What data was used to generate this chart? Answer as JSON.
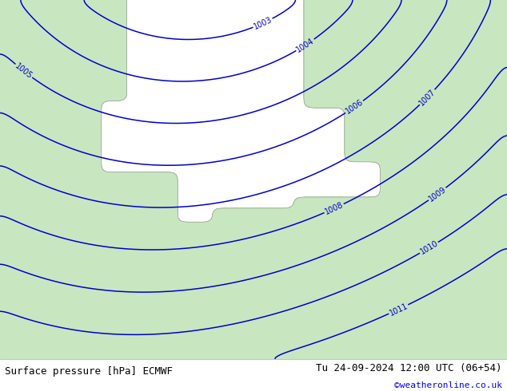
{
  "title_left": "Surface pressure [hPa] ECMWF",
  "title_right": "Tu 24-09-2024 12:00 UTC (06+54)",
  "credit": "©weatheronline.co.uk",
  "bg_color": "#ffffff",
  "land_color": "#c8e6c0",
  "sea_color": "#cccccc",
  "contour_color": "#0000cc",
  "label_color": "#0000cc",
  "text_color": "#000000",
  "credit_color": "#0000ff",
  "figsize": [
    6.34,
    4.9
  ],
  "dpi": 100,
  "bottom_bar_color": "#c8e6c0"
}
